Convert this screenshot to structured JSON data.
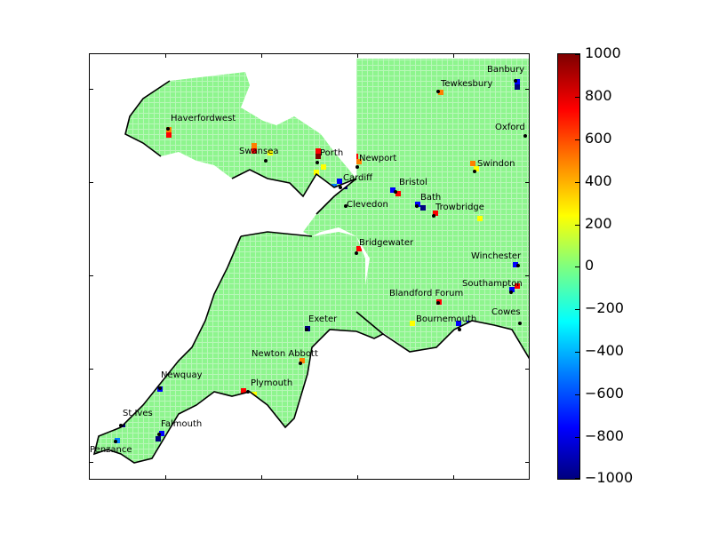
{
  "colorbar": {
    "min": -1000,
    "max": 1000,
    "ticks": [
      "1000",
      "800",
      "600",
      "400",
      "200",
      "0",
      "−200",
      "−400",
      "−600",
      "−800",
      "−1000"
    ],
    "tick_values": [
      1000,
      800,
      600,
      400,
      200,
      0,
      -200,
      -400,
      -600,
      -800,
      -1000
    ]
  },
  "cities": [
    {
      "name": "Banbury"
    },
    {
      "name": "Tewkesbury"
    },
    {
      "name": "Haverfordwest"
    },
    {
      "name": "Oxford"
    },
    {
      "name": "Swansea"
    },
    {
      "name": "Porth"
    },
    {
      "name": "Newport"
    },
    {
      "name": "Swindon"
    },
    {
      "name": "Cardiff"
    },
    {
      "name": "Bristol"
    },
    {
      "name": "Bath"
    },
    {
      "name": "Clevedon"
    },
    {
      "name": "Trowbridge"
    },
    {
      "name": "Bridgewater"
    },
    {
      "name": "Winchester"
    },
    {
      "name": "Southampton"
    },
    {
      "name": "Blandford Forum"
    },
    {
      "name": "Cowes"
    },
    {
      "name": "Bournemouth"
    },
    {
      "name": "Exeter"
    },
    {
      "name": "Newton Abbott"
    },
    {
      "name": "Newquay"
    },
    {
      "name": "Plymouth"
    },
    {
      "name": "St Ives"
    },
    {
      "name": "Falmouth"
    },
    {
      "name": "Penzance"
    }
  ],
  "colors": {
    "land_base": "#7fff7f",
    "coast": "#000000"
  }
}
